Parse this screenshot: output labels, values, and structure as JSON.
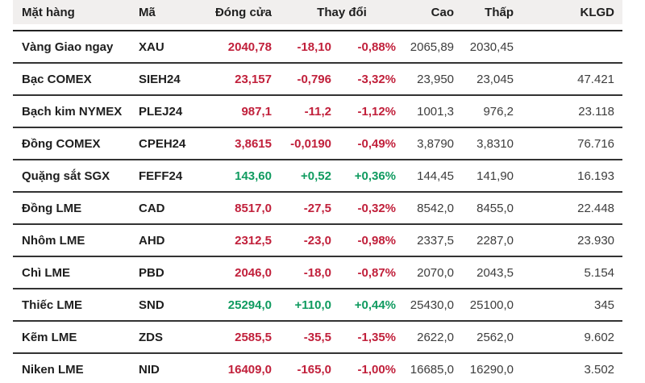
{
  "colors": {
    "down_red": "#c1203b",
    "up_green": "#109b60",
    "header_background": "#f1efee",
    "row_border": "#333333"
  },
  "table": {
    "headers": {
      "name": "Mặt hàng",
      "code": "Mã",
      "close": "Đóng cửa",
      "change": "Thay đổi",
      "high": "Cao",
      "low": "Thấp",
      "volume": "KLGD"
    },
    "rows": [
      {
        "name": "Vàng Giao ngay",
        "code": "XAU",
        "close": "2040,78",
        "change": "-18,10",
        "change_pct": "-0,88%",
        "high": "2065,89",
        "low": "2030,45",
        "volume": "",
        "trend": "down"
      },
      {
        "name": "Bạc COMEX",
        "code": "SIEH24",
        "close": "23,157",
        "change": "-0,796",
        "change_pct": "-3,32%",
        "high": "23,950",
        "low": "23,045",
        "volume": "47.421",
        "trend": "down"
      },
      {
        "name": "Bạch kim NYMEX",
        "code": "PLEJ24",
        "close": "987,1",
        "change": "-11,2",
        "change_pct": "-1,12%",
        "high": "1001,3",
        "low": "976,2",
        "volume": "23.118",
        "trend": "down"
      },
      {
        "name": "Đồng COMEX",
        "code": "CPEH24",
        "close": "3,8615",
        "change": "-0,0190",
        "change_pct": "-0,49%",
        "high": "3,8790",
        "low": "3,8310",
        "volume": "76.716",
        "trend": "down"
      },
      {
        "name": "Quặng sắt SGX",
        "code": "FEFF24",
        "close": "143,60",
        "change": "+0,52",
        "change_pct": "+0,36%",
        "high": "144,45",
        "low": "141,90",
        "volume": "16.193",
        "trend": "up"
      },
      {
        "name": "Đồng LME",
        "code": "CAD",
        "close": "8517,0",
        "change": "-27,5",
        "change_pct": "-0,32%",
        "high": "8542,0",
        "low": "8455,0",
        "volume": "22.448",
        "trend": "down"
      },
      {
        "name": "Nhôm LME",
        "code": "AHD",
        "close": "2312,5",
        "change": "-23,0",
        "change_pct": "-0,98%",
        "high": "2337,5",
        "low": "2287,0",
        "volume": "23.930",
        "trend": "down"
      },
      {
        "name": "Chì LME",
        "code": "PBD",
        "close": "2046,0",
        "change": "-18,0",
        "change_pct": "-0,87%",
        "high": "2070,0",
        "low": "2043,5",
        "volume": "5.154",
        "trend": "down"
      },
      {
        "name": "Thiếc LME",
        "code": "SND",
        "close": "25294,0",
        "change": "+110,0",
        "change_pct": "+0,44%",
        "high": "25430,0",
        "low": "25100,0",
        "volume": "345",
        "trend": "up"
      },
      {
        "name": "Kẽm LME",
        "code": "ZDS",
        "close": "2585,5",
        "change": "-35,5",
        "change_pct": "-1,35%",
        "high": "2622,0",
        "low": "2562,0",
        "volume": "9.602",
        "trend": "down"
      },
      {
        "name": "Niken LME",
        "code": "NID",
        "close": "16409,0",
        "change": "-165,0",
        "change_pct": "-1,00%",
        "high": "16685,0",
        "low": "16290,0",
        "volume": "3.502",
        "trend": "down"
      }
    ]
  }
}
